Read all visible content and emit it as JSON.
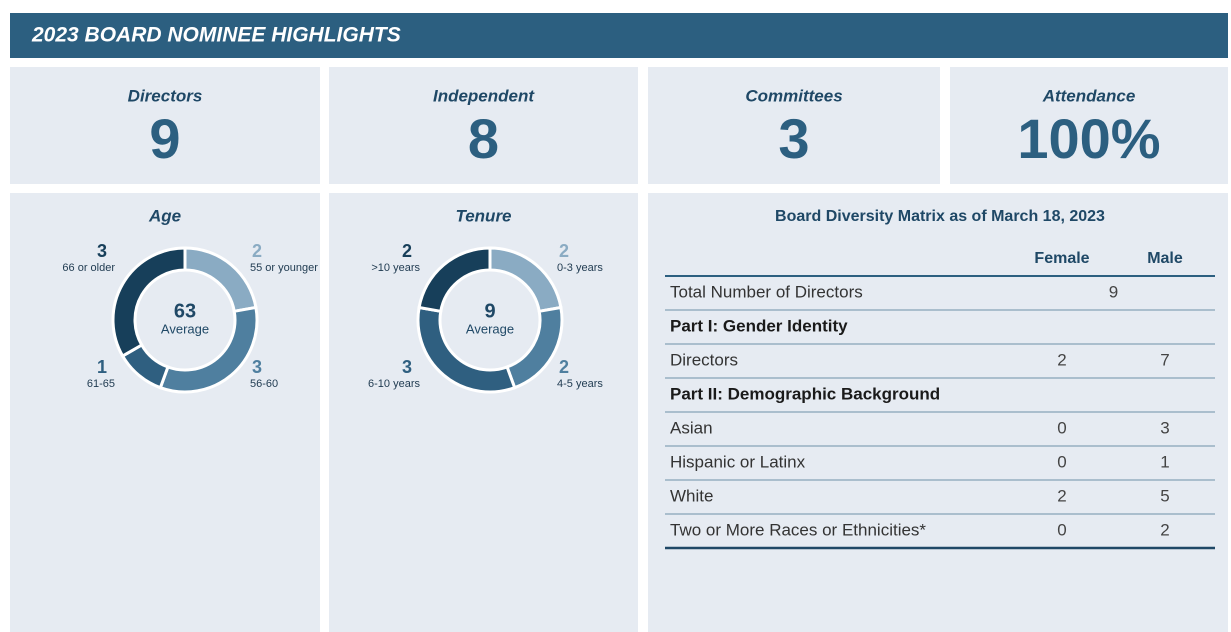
{
  "header": {
    "title": "2023 BOARD NOMINEE HIGHLIGHTS"
  },
  "stats": [
    {
      "label": "Directors",
      "value": "9"
    },
    {
      "label": "Independent",
      "value": "8"
    },
    {
      "label": "Committees",
      "value": "3"
    },
    {
      "label": "Attendance",
      "value": "100%"
    }
  ],
  "donuts": [
    {
      "title": "Age",
      "center_value": "63",
      "center_label": "Average",
      "segments": [
        {
          "value": 2,
          "label": "55 or younger",
          "color": "#8aabc3"
        },
        {
          "value": 3,
          "label": "56-60",
          "color": "#4f7f9f"
        },
        {
          "value": 1,
          "label": "61-65",
          "color": "#2f5f80"
        },
        {
          "value": 3,
          "label": "66 or older",
          "color": "#173f5a"
        }
      ]
    },
    {
      "title": "Tenure",
      "center_value": "9",
      "center_label": "Average",
      "segments": [
        {
          "value": 2,
          "label": "0-3 years",
          "color": "#8aabc3"
        },
        {
          "value": 2,
          "label": "4-5 years",
          "color": "#4f7f9f"
        },
        {
          "value": 3,
          "label": "6-10 years",
          "color": "#2f5f80"
        },
        {
          "value": 2,
          "label": ">10 years",
          "color": "#173f5a"
        }
      ]
    }
  ],
  "table": {
    "title": "Board Diversity Matrix as of March 18, 2023",
    "columns": [
      "Female",
      "Male"
    ],
    "rows": [
      {
        "label": "Total Number of Directors",
        "merged": 9
      },
      {
        "section": "Part I: Gender Identity"
      },
      {
        "label": "Directors",
        "cells": [
          2,
          7
        ]
      },
      {
        "section": "Part II: Demographic Background"
      },
      {
        "label": "Asian",
        "cells": [
          0,
          3
        ]
      },
      {
        "label": "Hispanic or Latinx",
        "cells": [
          0,
          1
        ]
      },
      {
        "label": "White",
        "cells": [
          2,
          5
        ]
      },
      {
        "label": "Two or More Races or Ethnicities*",
        "cells": [
          0,
          2
        ]
      }
    ]
  }
}
